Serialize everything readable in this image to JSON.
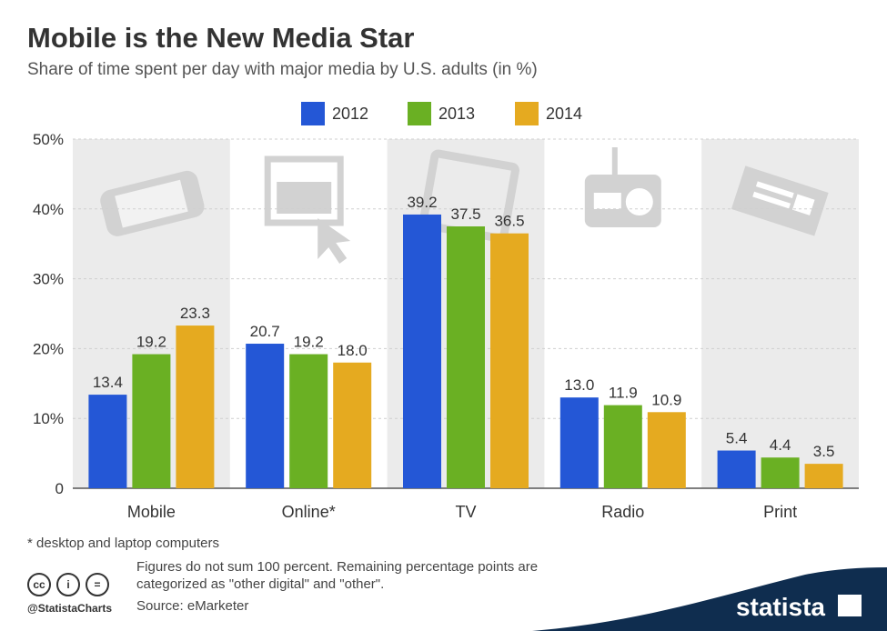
{
  "header": {
    "title": "Mobile is the New Media Star",
    "subtitle": "Share of time spent per day with major media by U.S. adults (in %)"
  },
  "chart_data": {
    "type": "bar",
    "categories": [
      "Mobile",
      "Online*",
      "TV",
      "Radio",
      "Print"
    ],
    "series": [
      {
        "name": "2012",
        "color": "#2457d6",
        "values": [
          13.4,
          20.7,
          39.2,
          13.0,
          5.4
        ]
      },
      {
        "name": "2013",
        "color": "#6ab023",
        "values": [
          19.2,
          19.2,
          37.5,
          11.9,
          4.4
        ]
      },
      {
        "name": "2014",
        "color": "#e5aa20",
        "values": [
          23.3,
          18.0,
          36.5,
          10.9,
          3.5
        ]
      }
    ],
    "yticks": [
      "0",
      "10%",
      "20%",
      "30%",
      "40%",
      "50%"
    ],
    "ylim": [
      0,
      50
    ],
    "grid": true,
    "legend": "top-center",
    "category_icons": [
      "smartphone-icon",
      "monitor-cursor-icon",
      "tv-icon",
      "radio-icon",
      "newspaper-icon"
    ]
  },
  "footer": {
    "footnote": "* desktop and laptop computers",
    "note": "Figures do not sum 100 percent. Remaining percentage points are categorized as \"other digital\" and \"other\".",
    "source": "Source: eMarketer",
    "handle": "@StatistaCharts",
    "cc_icons": [
      "cc",
      "i",
      "="
    ],
    "brand": "statista"
  },
  "colors": {
    "band": "#ebebeb",
    "brand": "#0f2d4f"
  }
}
